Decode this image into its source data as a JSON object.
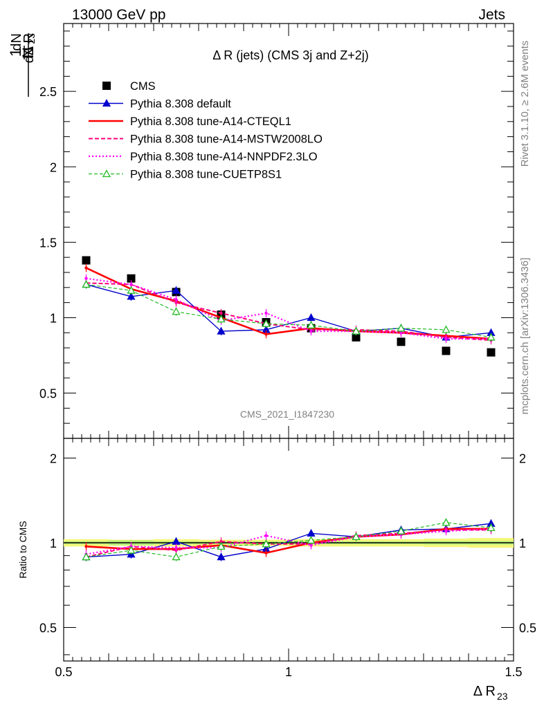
{
  "header": {
    "left": "13000 GeV pp",
    "right": "Jets"
  },
  "side_labels": {
    "rivet": "Rivet 3.1.10, ≥ 2.6M events",
    "mcplots": "mcplots.cern.ch [arXiv:1306.3436]"
  },
  "analysis_id": "CMS_2021_I1847230",
  "colors": {
    "cms": "#000000",
    "default": "#0000cc",
    "cteql1": "#ff0000",
    "mstw": "#ff0077",
    "nnpdf": "#ff00ff",
    "cuetp8s1": "#22bb22",
    "band_yellow": "#f4f77a",
    "band_green": "#b7f07a"
  },
  "chart_data": [
    {
      "type": "scatter",
      "panel": "main",
      "title": "Δ R (jets) (CMS 3j and Z+2j)",
      "ylabel_num": "dN",
      "ylabel_den_left": "N",
      "ylabel_den_mid": "dΔ R",
      "ylabel_den_sub": "23",
      "ylabel_one": "1",
      "xlim": [
        0.5,
        1.5
      ],
      "ylim": [
        0.2,
        2.95
      ],
      "yticks": [
        "0.5",
        "1",
        "1.5",
        "2",
        "2.5"
      ],
      "yticks_values": [
        0.5,
        1,
        1.5,
        2,
        2.5
      ],
      "legend_placement": "top-left",
      "x": [
        0.55,
        0.65,
        0.75,
        0.85,
        0.95,
        1.05,
        1.15,
        1.25,
        1.35,
        1.45
      ],
      "series": [
        {
          "key": "cms",
          "name": "CMS",
          "style": "data",
          "values": [
            1.38,
            1.26,
            1.17,
            1.02,
            0.97,
            0.93,
            0.87,
            0.84,
            0.78,
            0.77
          ]
        },
        {
          "key": "default",
          "name": "Pythia 8.308 default",
          "style": "solid-triangle",
          "values": [
            1.22,
            1.14,
            1.18,
            0.91,
            0.92,
            1.0,
            0.91,
            0.93,
            0.87,
            0.9
          ]
        },
        {
          "key": "cteql1",
          "name": "Pythia 8.308 tune-A14-CTEQL1",
          "style": "solid-thick",
          "values": [
            1.33,
            1.19,
            1.11,
            1.0,
            0.89,
            0.93,
            0.91,
            0.9,
            0.88,
            0.86
          ]
        },
        {
          "key": "mstw",
          "name": "Pythia 8.308 tune-A14-MSTW2008LO",
          "style": "dashed",
          "values": [
            1.23,
            1.22,
            1.1,
            1.03,
            0.96,
            0.92,
            0.92,
            0.91,
            0.87,
            0.85
          ]
        },
        {
          "key": "nnpdf",
          "name": "Pythia 8.308 tune-A14-NNPDF2.3LO",
          "style": "dotted",
          "values": [
            1.26,
            1.22,
            1.12,
            0.98,
            1.03,
            0.91,
            0.91,
            0.9,
            0.86,
            0.86
          ]
        },
        {
          "key": "cuetp8s1",
          "name": "Pythia 8.308 tune-CUETP8S1",
          "style": "dashed-open-triangle",
          "values": [
            1.22,
            1.18,
            1.04,
            0.99,
            0.96,
            0.95,
            0.91,
            0.93,
            0.92,
            0.87
          ]
        }
      ]
    },
    {
      "type": "scatter",
      "panel": "ratio",
      "ylabel": "Ratio to CMS",
      "xlabel": "Δ R",
      "xlabel_sub": "23",
      "xlim": [
        0.5,
        1.5
      ],
      "ylim": [
        0.38,
        2.35
      ],
      "scale": "log",
      "xticks": [
        "0.5",
        "1",
        "1.5"
      ],
      "xticks_values": [
        0.5,
        1.0,
        1.5
      ],
      "yticks": [
        "0.5",
        "1",
        "2"
      ],
      "yticks_values": [
        0.5,
        1,
        2
      ],
      "x": [
        0.55,
        0.65,
        0.75,
        0.85,
        0.95,
        1.05,
        1.15,
        1.25,
        1.35,
        1.45
      ],
      "series": [
        {
          "key": "default",
          "name": "Pythia 8.308 default",
          "style": "solid-triangle",
          "values": [
            0.89,
            0.91,
            1.01,
            0.89,
            0.95,
            1.08,
            1.05,
            1.11,
            1.12,
            1.17
          ]
        },
        {
          "key": "cteql1",
          "name": "Pythia 8.308 tune-A14-CTEQL1",
          "style": "solid-thick",
          "values": [
            0.97,
            0.95,
            0.95,
            0.98,
            0.92,
            1.0,
            1.05,
            1.07,
            1.12,
            1.12
          ]
        },
        {
          "key": "mstw",
          "name": "Pythia 8.308 tune-A14-MSTW2008LO",
          "style": "dashed",
          "values": [
            0.89,
            0.97,
            0.94,
            1.01,
            0.99,
            0.99,
            1.06,
            1.08,
            1.11,
            1.11
          ]
        },
        {
          "key": "nnpdf",
          "name": "Pythia 8.308 tune-A14-NNPDF2.3LO",
          "style": "dotted",
          "values": [
            0.91,
            0.97,
            0.96,
            0.96,
            1.06,
            0.98,
            1.05,
            1.07,
            1.1,
            1.12
          ]
        },
        {
          "key": "cuetp8s1",
          "name": "Pythia 8.308 tune-CUETP8S1",
          "style": "dashed-open-triangle",
          "values": [
            0.89,
            0.94,
            0.89,
            0.97,
            0.99,
            1.02,
            1.05,
            1.1,
            1.18,
            1.13
          ]
        }
      ],
      "band": {
        "yellow_halfwidth": [
          0.03,
          0.025,
          0.03,
          0.025,
          0.025,
          0.03,
          0.03,
          0.03,
          0.035,
          0.04
        ],
        "green_halfwidth": [
          0.012,
          0.02,
          0.012,
          0.01,
          0.01,
          0.012,
          0.012,
          0.012,
          0.015,
          0.015
        ]
      }
    }
  ]
}
